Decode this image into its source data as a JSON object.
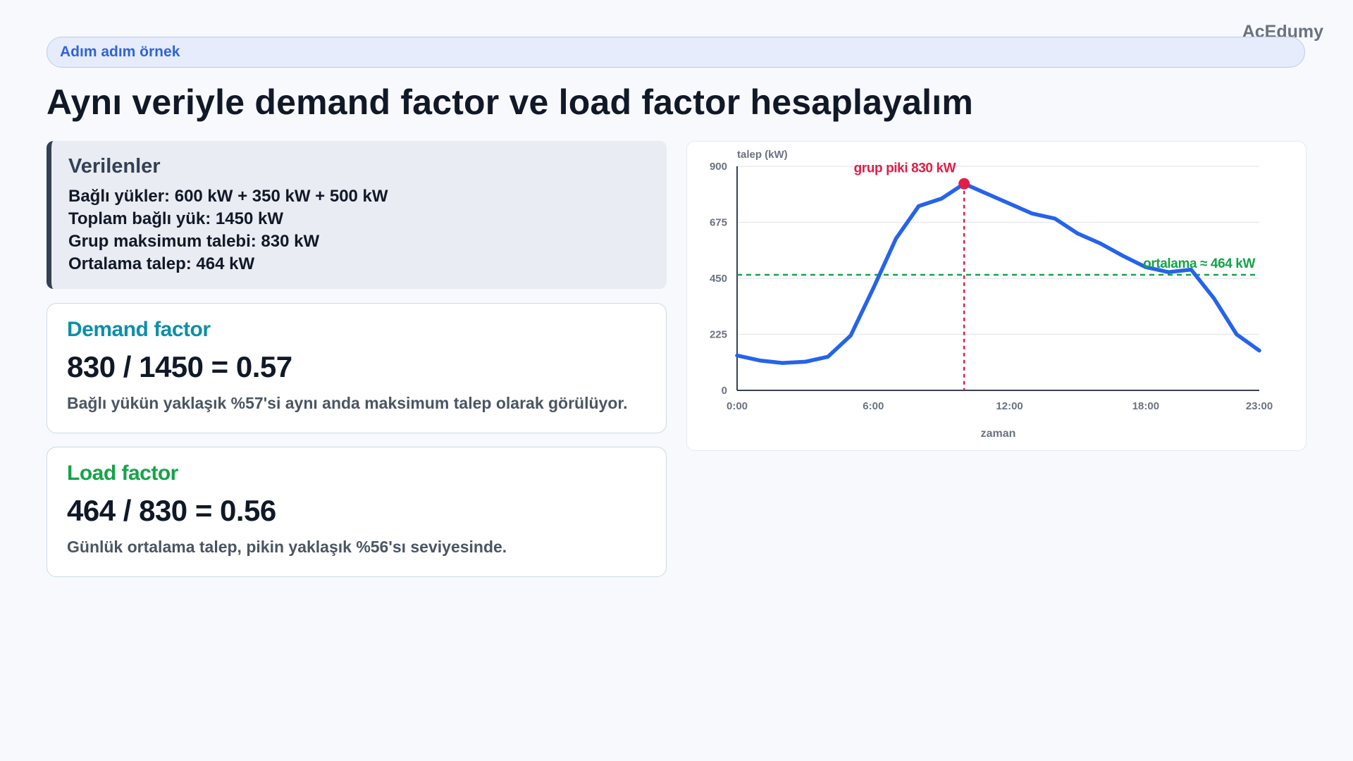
{
  "brand": "AcEdumy",
  "header": {
    "pill_label": "Adım adım örnek",
    "title": "Aynı veriyle demand factor ve load factor hesaplayalım"
  },
  "given": {
    "heading": "Verilenler",
    "lines": [
      "Bağlı yükler: 600 kW + 350 kW + 500 kW",
      "Toplam bağlı yük: 1450 kW",
      "Grup maksimum talebi: 830 kW",
      "Ortalama talep: 464 kW"
    ]
  },
  "demand_card": {
    "title": "Demand factor",
    "formula": "830 / 1450 = 0.57",
    "desc": "Bağlı yükün yaklaşık %57'si aynı anda maksimum talep olarak görülüyor."
  },
  "load_card": {
    "title": "Load factor",
    "formula": "464 / 830 = 0.56",
    "desc": "Günlük ortalama talep, pikin yaklaşık %56'sı seviyesinde."
  },
  "colors": {
    "demand_title": "#0e8fa8",
    "load_title": "#16a34a",
    "line": "#2563eb",
    "peak": "#e11d48",
    "average": "#16a34a"
  },
  "chart_data": {
    "type": "line",
    "xlabel": "zaman",
    "ylabel": "talep (kW)",
    "ylim": [
      0,
      900
    ],
    "xlim": [
      0,
      23
    ],
    "yticks": [
      0,
      225,
      450,
      675,
      900
    ],
    "xticks": [
      {
        "value": 0,
        "label": "0:00"
      },
      {
        "value": 6,
        "label": "6:00"
      },
      {
        "value": 12,
        "label": "12:00"
      },
      {
        "value": 18,
        "label": "18:00"
      },
      {
        "value": 23,
        "label": "23:00"
      }
    ],
    "grid": true,
    "series": [
      {
        "x": [
          0,
          1,
          2,
          3,
          4,
          5,
          6,
          7,
          8,
          9,
          10,
          11,
          12,
          13,
          14,
          15,
          16,
          17,
          18,
          19,
          20,
          21,
          22,
          23
        ],
        "values": [
          140,
          120,
          110,
          115,
          135,
          220,
          410,
          610,
          740,
          770,
          830,
          790,
          750,
          710,
          690,
          630,
          590,
          540,
          495,
          475,
          485,
          370,
          225,
          160
        ]
      }
    ],
    "peak": {
      "x": 10,
      "value": 830,
      "label": "grup piki 830 kW"
    },
    "average": {
      "value": 464,
      "label": "ortalama ≈ 464 kW"
    }
  }
}
